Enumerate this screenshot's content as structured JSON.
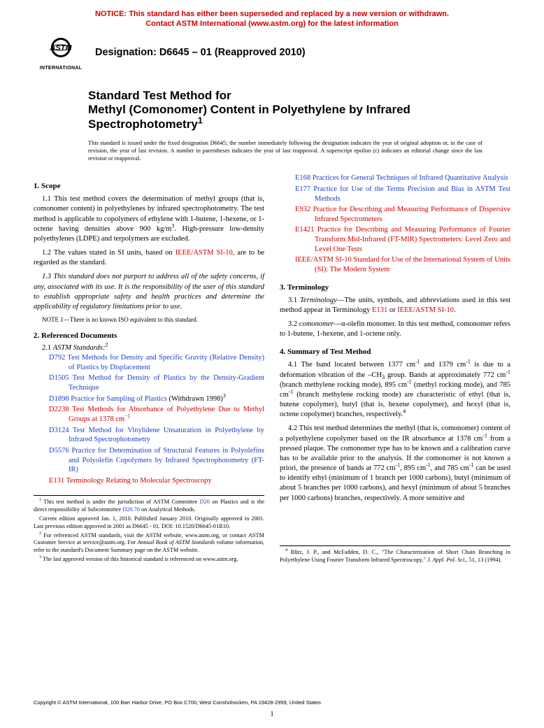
{
  "notice": {
    "line1": "NOTICE: This standard has either been superseded and replaced by a new version or withdrawn.",
    "line2": "Contact ASTM International (www.astm.org) for the latest information"
  },
  "logo": {
    "label": "INTERNATIONAL"
  },
  "designation": "Designation: D6645 – 01 (Reapproved 2010)",
  "title": {
    "line1": "Standard Test Method for",
    "line2": "Methyl (Comonomer) Content in Polyethylene by Infrared",
    "line3": "Spectrophotometry"
  },
  "title_super": "1",
  "issued_note": "This standard is issued under the fixed designation D6645; the number immediately following the designation indicates the year of original adoption or, in the case of revision, the year of last revision. A number in parentheses indicates the year of last reapproval. A superscript epsilon (ε) indicates an editorial change since the last revision or reapproval.",
  "sec1": {
    "head": "1. Scope"
  },
  "p11a": "1.1 This test method covers the determination of methyl groups (that is, comonomer content) in polyethylenes by infrared spectrophotometry. The test method is applicable to copolymers of ethylene with 1-butene, 1-hexene, or 1-octene having densities above 900 kg/m",
  "p11b": ". High-pressure low-density polyethylenes (LDPE) and terpolymers are excluded.",
  "p12a": "1.2 The values stated in SI units, based on ",
  "p12link": "IEEE/ASTM SI-10",
  "p12b": ", are to be regarded as the standard.",
  "p13": "1.3 This standard does not purport to address all of the safety concerns, if any, associated with its use. It is the responsibility of the user of this standard to establish appropriate safety and health practices and determine the applicability of regulatory limitations prior to use.",
  "note1a": "OTE",
  "note1b": " 1—There is no known ISO equivalent to this standard.",
  "sec2": {
    "head": "2. Referenced Documents",
    "sub": "2.1 ",
    "subit": "ASTM Standards:",
    "sup": "2"
  },
  "refsL": [
    {
      "code": "D792",
      "txt": "Test Methods for Density and Specific Gravity (Relative Density) of Plastics by Displacement",
      "cls": "lnk"
    },
    {
      "code": "D1505",
      "txt": "Test Method for Density of Plastics by the Density-Gradient Technique",
      "cls": "lnk"
    },
    {
      "code": "D1898",
      "txt": "Practice for Sampling of Plastics",
      "extra": " (Withdrawn 1998)",
      "sup": "3",
      "cls": "lnk"
    },
    {
      "code": "D2238",
      "txt": "Test Methods for Absorbance of Polyethylene Due to Methyl Groups at 1378 cm",
      "sup2": "−1",
      "cls": "lnkr"
    },
    {
      "code": "D3124",
      "txt": "Test Method for Vinylidene Unsaturation in Polyethylene by Infrared Spectrophotometry",
      "cls": "lnk"
    },
    {
      "code": "D5576",
      "txt": "Practice for Determination of Structural Features in Polyolefins and Polyolefin Copolymers by Infrared Spectrophotometry (FT-IR)",
      "cls": "lnk"
    },
    {
      "code": "E131",
      "txt": "Terminology Relating to Molecular Spectroscopy",
      "cls": "lnkr"
    }
  ],
  "refsR": [
    {
      "code": "E168",
      "txt": "Practices for General Techniques of Infrared Quantitative Analysis",
      "cls": "lnk"
    },
    {
      "code": "E177",
      "txt": "Practice for Use of the Terms Precision and Bias in ASTM Test Methods",
      "cls": "lnk"
    },
    {
      "code": "E932",
      "txt": "Practice for Describing and Measuring Performance of Dispersive Infrared Spectrometers",
      "cls": "lnkr"
    },
    {
      "code": "E1421",
      "txt": "Practice for Describing and Measuring Performance of Fourier Transform Mid-Infrared (FT-MIR) Spectrometers: Level Zero and Level One Tests",
      "cls": "lnkr"
    },
    {
      "code": "IEEE/ASTM SI-10",
      "txt": " Standard for Use of the International System of Units (SI): The Modern System",
      "cls": "lnkr",
      "nosp": true
    }
  ],
  "sec3": {
    "head": "3. Terminology"
  },
  "p31a": "3.1 ",
  "p31it": "Terminology",
  "p31b": "—The units, symbols, and abbreviations used in this test method appear in Terminology ",
  "p31l1": "E131",
  "p31c": " or ",
  "p31l2": "IEEE/ASTM SI-10",
  "p31d": ".",
  "p32a": "3.2 ",
  "p32it": "comonomer",
  "p32b": "—α-olefin monomer. In this test method, comonomer refers to 1-butene, 1-hexene, and 1-octene only.",
  "sec4": {
    "head": "4. Summary of Test Method"
  },
  "p41a": "4.1 The band located between 1377 cm",
  "p41b": " and 1379 cm",
  "p41c": " is due to a deformation vibration of the –CH",
  "p41d": " group. Bands at approximately 772 cm",
  "p41e": " (branch methylene rocking mode), 895 cm",
  "p41f": " (methyl rocking mode), and 785 cm",
  "p41g": " (branch methylene rocking mode) are characteristic of ethyl (that is, butene copolymer), butyl (that is, hexene copolymer), and hexyl (that is, octene copolymer) branches, respectively.",
  "p41sup": "4",
  "p42a": "4.2 This test method determines the methyl (that is, comonomer) content of a polyethylene copolymer based on the IR absorbance at 1378 cm",
  "p42b": " from a pressed plaque. The comonomer type has to be known and a calibration curve has to be available prior to the analysis. If the comonomer is not known a priori, the presence of bands at 772 cm",
  "p42c": ", 895 cm",
  "p42d": ", and 785 cm",
  "p42e": " can be used to identify ethyl (minimum of 1 branch per 1000 carbons), butyl (minimum of about 5 branches per 1000 carbons), and hexyl (minimum of about 5 branches per 1000 carbons) branches, respectively. A more sensitive and",
  "footL": {
    "f1a": " This test method is under the jurisdiction of ASTM Committee ",
    "f1l1": "D20",
    "f1b": " on Plastics and is the direct responsibility of Subcommittee ",
    "f1l2": "D20.70",
    "f1c": " on Analytical Methods.",
    "f1d": "Current edition approved Jan. 1, 2010. Published January 2010. Originally approved in 2001. Last previous edition approved in 2001 as D6645 - 01. DOI: 10.1520/D6645-01R10.",
    "f2": " For referenced ASTM standards, visit the ASTM website, www.astm.org, or contact ASTM Customer Service at service@astm.org. For ",
    "f2it": "Annual Book of ASTM Standards",
    "f2b": " volume information, refer to the standard's Document Summary page on the ASTM website.",
    "f3": " The last approved version of this historical standard is referenced on www.astm.org."
  },
  "footR": {
    "f4a": " Blitz, J. P., and McFadden, D. C., \"The Characterization of Short Chain Branching in Polyethylene Using Fourier Transform Infrared Spectroscopy,\" ",
    "f4it": "J. Appl. Pol. Sci.",
    "f4b": ", 51, 13 (1994)."
  },
  "copyright": "Copyright © ASTM International, 100 Barr Harbor Drive, PO Box C700, West Conshohocken, PA 19428-2959, United States",
  "pagenum": "1"
}
